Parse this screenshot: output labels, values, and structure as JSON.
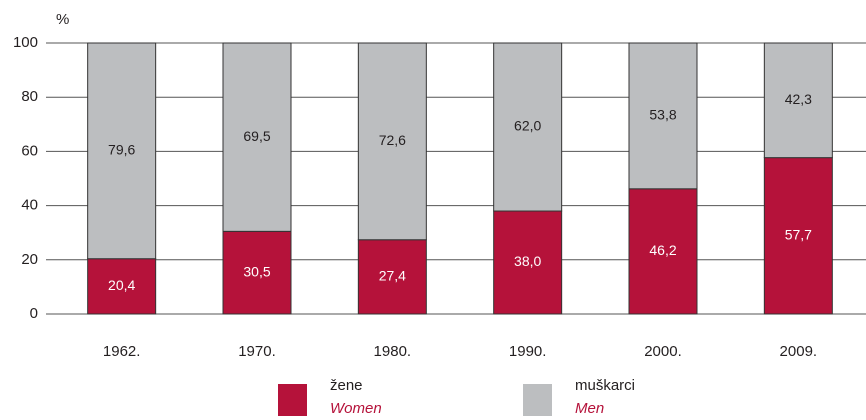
{
  "chart_data": {
    "type": "stacked_bar",
    "y_label": "%",
    "categories": [
      "1962.",
      "1970.",
      "1980.",
      "1990.",
      "2000.",
      "2009."
    ],
    "series": [
      {
        "name": "žene",
        "name_en": "Women",
        "color": "#b5123a",
        "label_color": "#ffffff",
        "values": [
          20.4,
          30.5,
          27.4,
          38.0,
          46.2,
          57.7
        ],
        "value_labels": [
          "20,4",
          "30,5",
          "27,4",
          "38,0",
          "46,2",
          "57,7"
        ]
      },
      {
        "name": "muškarci",
        "name_en": "Men",
        "color": "#bcbec0",
        "label_color": "#231f20",
        "values": [
          79.6,
          69.5,
          72.6,
          62.0,
          53.8,
          42.3
        ],
        "value_labels": [
          "79,6",
          "69,5",
          "72,6",
          "62,0",
          "53,8",
          "42,3"
        ]
      }
    ],
    "ylim": [
      0,
      100
    ],
    "yticks": [
      0,
      20,
      40,
      60,
      80,
      100
    ],
    "grid": true,
    "legend": "bottom"
  }
}
